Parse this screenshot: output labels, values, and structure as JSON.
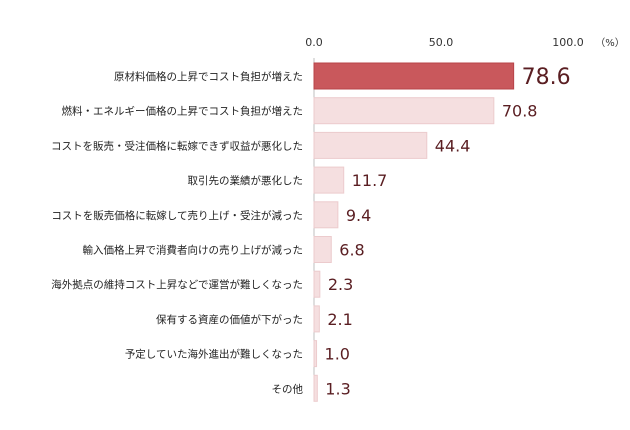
{
  "chart_data": {
    "type": "bar",
    "orientation": "horizontal",
    "unit": "（%）",
    "xlim": [
      0,
      100
    ],
    "ticks": [
      "0.0",
      "50.0",
      "100.0"
    ],
    "tick_values": [
      0,
      50,
      100
    ],
    "grid": false,
    "categories": [
      "原材料価格の上昇でコスト負担が増えた",
      "燃料・エネルギー価格の上昇でコスト負担が増えた",
      "コストを販売・受注価格に転嫁できず収益が悪化した",
      "取引先の業績が悪化した",
      "コストを販売価格に転嫁して売り上げ・受注が減った",
      "輸入価格上昇で消費者向けの売り上げが減った",
      "海外拠点の維持コスト上昇などで運営が難しくなった",
      "保有する資産の価値が下がった",
      "予定していた海外進出が難しくなった",
      "その他"
    ],
    "values": [
      78.6,
      70.8,
      44.4,
      11.7,
      9.4,
      6.8,
      2.3,
      2.1,
      1.0,
      1.3
    ],
    "value_labels": [
      "78.6",
      "70.8",
      "44.4",
      "11.7",
      "9.4",
      "6.8",
      "2.3",
      "2.1",
      "1.0",
      "1.3"
    ],
    "highlight_index": 0,
    "colors": {
      "highlight": "#c9585c",
      "highlight_border": "#b84449",
      "bar": "#f5dfe0",
      "bar_border": "#eccbcd",
      "value_text": "#5a1e22",
      "axis": "#bfbfbf"
    }
  }
}
